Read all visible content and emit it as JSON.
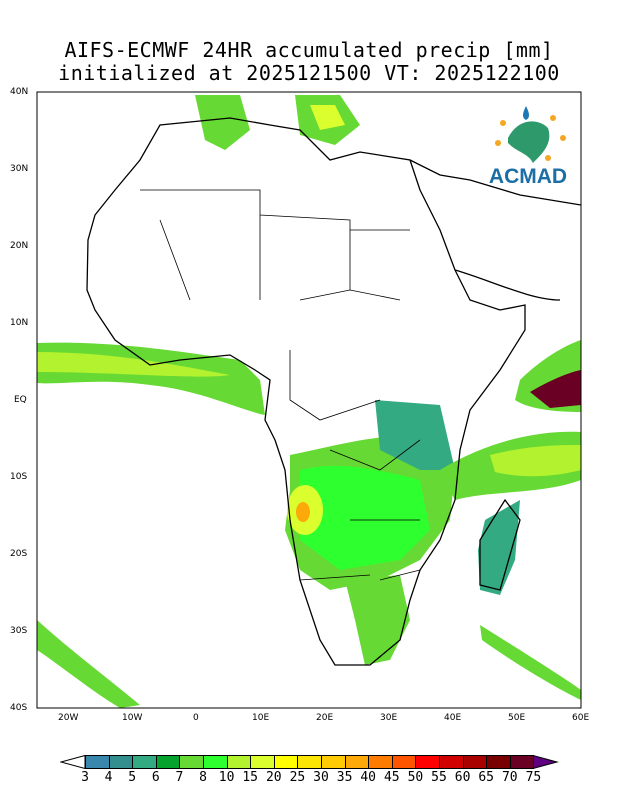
{
  "title": {
    "line1": "AIFS-ECMWF 24HR accumulated precip [mm]",
    "line2": "initialized at 2025121500 VT: 2025122100"
  },
  "logo": {
    "text": "ACMAD"
  },
  "axes": {
    "lat_labels": [
      "40N",
      "30N",
      "20N",
      "10N",
      "EQ",
      "10S",
      "20S",
      "30S",
      "40S"
    ],
    "lon_labels": [
      "20W",
      "10W",
      "0",
      "10E",
      "20E",
      "30E",
      "40E",
      "50E",
      "60E"
    ]
  },
  "colorbar": {
    "labels": [
      "3",
      "4",
      "5",
      "6",
      "7",
      "8",
      "10",
      "15",
      "20",
      "25",
      "30",
      "35",
      "40",
      "45",
      "50",
      "55",
      "60",
      "65",
      "70",
      "75"
    ],
    "colors": [
      "#3a87ae",
      "#338e8e",
      "#33aa82",
      "#06a22e",
      "#67d934",
      "#2eff2e",
      "#b3f22e",
      "#dbff2e",
      "#ffff00",
      "#fae504",
      "#ffcb05",
      "#fca909",
      "#ff7c00",
      "#ff5500",
      "#ff0000",
      "#d10000",
      "#a90000",
      "#780000",
      "#6a0124"
    ],
    "under_color": "#ffffff",
    "over_color": "#5e0080"
  }
}
